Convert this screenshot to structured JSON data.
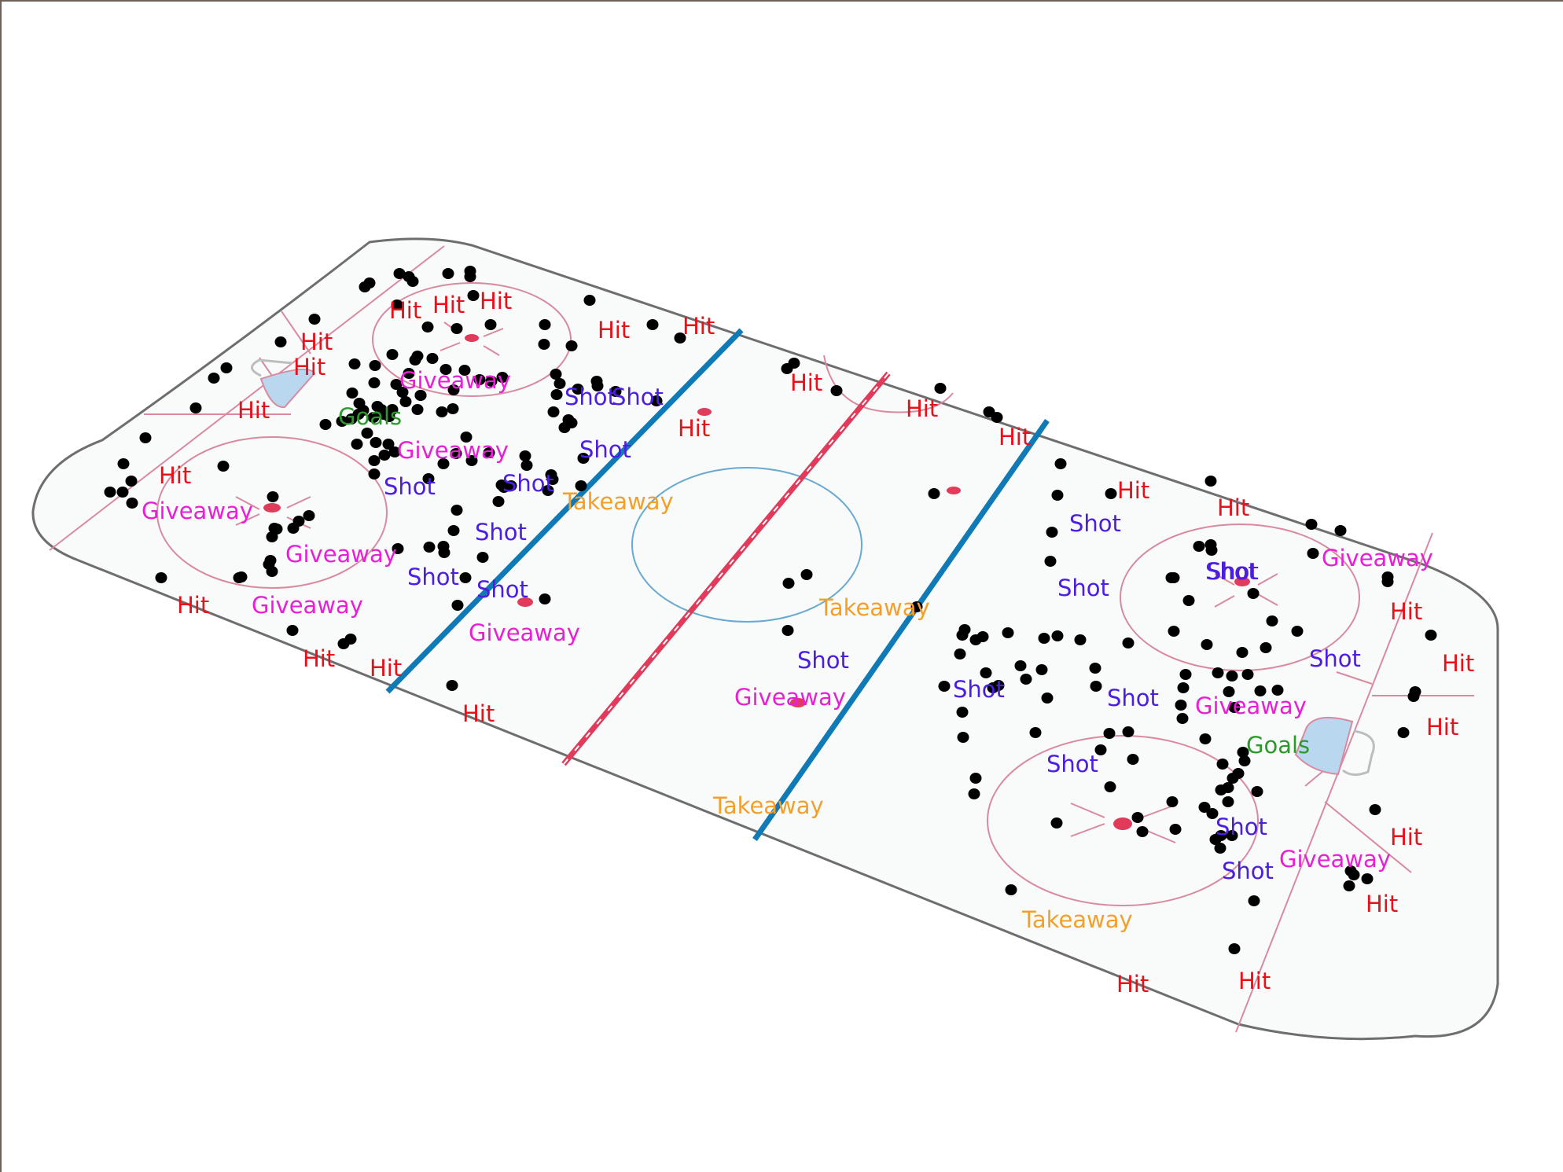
{
  "legend_colors": {
    "Hit": "#e8101b",
    "Giveaway": "#e81fd6",
    "Shot": "#4b1ee0",
    "Takeaway": "#f2a02b",
    "Goals": "#2b9a2b"
  },
  "rink_colors": {
    "ice": "#f8fbf9",
    "board": "#6e6e6e",
    "blue_line": "#0f7ab5",
    "red_line": "#e13a5a",
    "circle_line": "#d98aa0",
    "center_circle": "#6aa9d0",
    "crease": "#b9d7ef",
    "dot": "#000000"
  },
  "labels": [
    {
      "text": "Hit"
    },
    {
      "text": "Hit"
    },
    {
      "text": "Hit"
    },
    {
      "text": "Hit"
    },
    {
      "text": "Hit"
    },
    {
      "text": "Hit"
    },
    {
      "text": "Hit"
    },
    {
      "text": "Hit"
    },
    {
      "text": "Hit"
    },
    {
      "text": "Hit"
    },
    {
      "text": "Hit"
    },
    {
      "text": "Hit"
    },
    {
      "text": "Hit"
    },
    {
      "text": "Hit"
    },
    {
      "text": "Hit"
    },
    {
      "text": "Hit"
    },
    {
      "text": "Hit"
    },
    {
      "text": "Hit"
    },
    {
      "text": "Hit"
    },
    {
      "text": "Hit"
    },
    {
      "text": "Hit"
    },
    {
      "text": "Hit"
    },
    {
      "text": "Hit"
    },
    {
      "text": "Hit"
    },
    {
      "text": "Hit"
    },
    {
      "text": "Hit"
    },
    {
      "text": "Giveaway"
    },
    {
      "text": "Giveaway"
    },
    {
      "text": "Giveaway"
    },
    {
      "text": "Giveaway"
    },
    {
      "text": "Giveaway"
    },
    {
      "text": "Giveaway"
    },
    {
      "text": "Giveaway"
    },
    {
      "text": "Giveaway"
    },
    {
      "text": "Giveaway"
    },
    {
      "text": "Giveaway"
    },
    {
      "text": "Shot"
    },
    {
      "text": "Shot"
    },
    {
      "text": "Shot"
    },
    {
      "text": "Shot"
    },
    {
      "text": "Shot"
    },
    {
      "text": "Shot"
    },
    {
      "text": "Shot"
    },
    {
      "text": "Shot"
    },
    {
      "text": "Shot"
    },
    {
      "text": "Shot"
    },
    {
      "text": "Shot"
    },
    {
      "text": "Shot"
    },
    {
      "text": "Shot"
    },
    {
      "text": "Shot"
    },
    {
      "text": "Shot"
    },
    {
      "text": "Shot"
    },
    {
      "text": "Shot"
    },
    {
      "text": "Shot"
    },
    {
      "text": "Shot"
    },
    {
      "text": "Takeaway"
    },
    {
      "text": "Takeaway"
    },
    {
      "text": "Takeaway"
    },
    {
      "text": "Takeaway"
    },
    {
      "text": "Goals"
    },
    {
      "text": "Goals"
    }
  ]
}
